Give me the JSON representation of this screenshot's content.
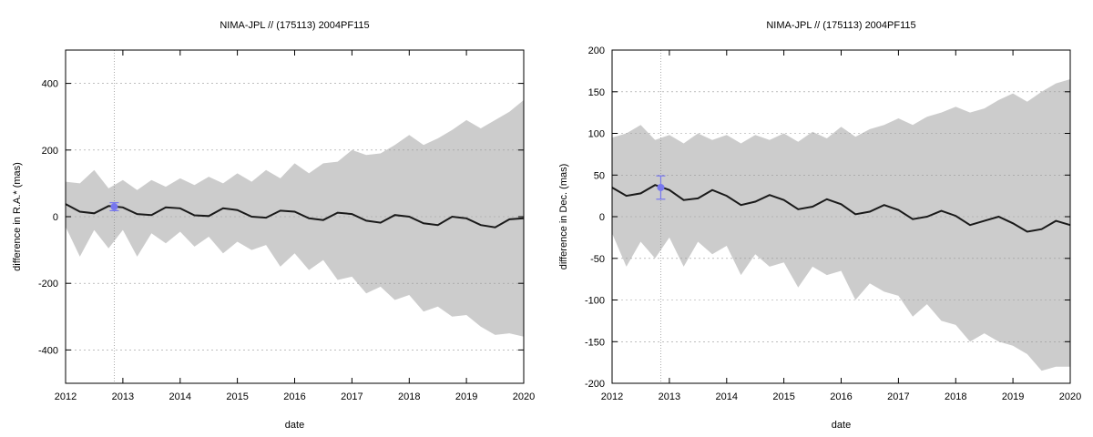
{
  "chart_data": [
    {
      "type": "line",
      "title": "NIMA-JPL // (175113) 2004PF115",
      "xlabel": "date",
      "ylabel": "difference in R.A.* (mas)",
      "xlim": [
        2012,
        2020
      ],
      "ylim": [
        -500,
        500
      ],
      "xticks": [
        2012,
        2013,
        2014,
        2015,
        2016,
        2017,
        2018,
        2019,
        2020
      ],
      "yticks": [
        -400,
        -200,
        0,
        200,
        400
      ],
      "grid": true,
      "marker_line_x": 2012.85,
      "colors": {
        "band": "#cccccc",
        "curve": "#1a1a1a",
        "observation": "#7777ee"
      },
      "band": {
        "x": [
          2012.0,
          2012.25,
          2012.5,
          2012.75,
          2013.0,
          2013.25,
          2013.5,
          2013.75,
          2014.0,
          2014.25,
          2014.5,
          2014.75,
          2015.0,
          2015.25,
          2015.5,
          2015.75,
          2016.0,
          2016.25,
          2016.5,
          2016.75,
          2017.0,
          2017.25,
          2017.5,
          2017.75,
          2018.0,
          2018.25,
          2018.5,
          2018.75,
          2019.0,
          2019.25,
          2019.5,
          2019.75,
          2020.0
        ],
        "upper": [
          105,
          100,
          140,
          85,
          110,
          80,
          110,
          90,
          115,
          95,
          120,
          100,
          130,
          105,
          140,
          115,
          160,
          130,
          160,
          165,
          200,
          185,
          190,
          215,
          245,
          215,
          235,
          260,
          290,
          265,
          290,
          315,
          350
        ],
        "lower": [
          -30,
          -120,
          -40,
          -95,
          -40,
          -120,
          -50,
          -80,
          -45,
          -90,
          -60,
          -110,
          -75,
          -100,
          -85,
          -150,
          -110,
          -160,
          -130,
          -190,
          -180,
          -230,
          -210,
          -250,
          -235,
          -285,
          -270,
          -300,
          -295,
          -330,
          -355,
          -350,
          -360
        ]
      },
      "curve": {
        "x": [
          2012.0,
          2012.25,
          2012.5,
          2012.75,
          2013.0,
          2013.25,
          2013.5,
          2013.75,
          2014.0,
          2014.25,
          2014.5,
          2014.75,
          2015.0,
          2015.25,
          2015.5,
          2015.75,
          2016.0,
          2016.25,
          2016.5,
          2016.75,
          2017.0,
          2017.25,
          2017.5,
          2017.75,
          2018.0,
          2018.25,
          2018.5,
          2018.75,
          2019.0,
          2019.25,
          2019.5,
          2019.75,
          2020.0
        ],
        "y": [
          38,
          15,
          10,
          32,
          28,
          8,
          5,
          28,
          25,
          4,
          2,
          25,
          20,
          0,
          -3,
          18,
          15,
          -5,
          -10,
          12,
          8,
          -12,
          -18,
          5,
          0,
          -20,
          -25,
          0,
          -5,
          -25,
          -32,
          -8,
          -5
        ]
      },
      "observation": {
        "x": 2012.85,
        "y": 30,
        "err": 12
      }
    },
    {
      "type": "line",
      "title": "NIMA-JPL // (175113) 2004PF115",
      "xlabel": "date",
      "ylabel": "difference in Dec. (mas)",
      "xlim": [
        2012,
        2020
      ],
      "ylim": [
        -200,
        200
      ],
      "xticks": [
        2012,
        2013,
        2014,
        2015,
        2016,
        2017,
        2018,
        2019,
        2020
      ],
      "yticks": [
        -200,
        -150,
        -100,
        -50,
        0,
        50,
        100,
        150,
        200
      ],
      "grid": true,
      "marker_line_x": 2012.85,
      "colors": {
        "band": "#cccccc",
        "curve": "#1a1a1a",
        "observation": "#7777ee"
      },
      "band": {
        "x": [
          2012.0,
          2012.25,
          2012.5,
          2012.75,
          2013.0,
          2013.25,
          2013.5,
          2013.75,
          2014.0,
          2014.25,
          2014.5,
          2014.75,
          2015.0,
          2015.25,
          2015.5,
          2015.75,
          2016.0,
          2016.25,
          2016.5,
          2016.75,
          2017.0,
          2017.25,
          2017.5,
          2017.75,
          2018.0,
          2018.25,
          2018.5,
          2018.75,
          2019.0,
          2019.25,
          2019.5,
          2019.75,
          2020.0
        ],
        "upper": [
          95,
          100,
          110,
          92,
          98,
          88,
          100,
          92,
          98,
          88,
          98,
          92,
          100,
          90,
          102,
          94,
          108,
          96,
          105,
          110,
          118,
          110,
          120,
          125,
          132,
          125,
          130,
          140,
          148,
          138,
          150,
          160,
          165
        ],
        "lower": [
          -20,
          -60,
          -30,
          -50,
          -25,
          -60,
          -30,
          -45,
          -35,
          -70,
          -45,
          -60,
          -55,
          -85,
          -60,
          -70,
          -65,
          -100,
          -80,
          -90,
          -95,
          -120,
          -105,
          -125,
          -130,
          -150,
          -140,
          -150,
          -155,
          -165,
          -185,
          -180,
          -180
        ]
      },
      "curve": {
        "x": [
          2012.0,
          2012.25,
          2012.5,
          2012.75,
          2013.0,
          2013.25,
          2013.5,
          2013.75,
          2014.0,
          2014.25,
          2014.5,
          2014.75,
          2015.0,
          2015.25,
          2015.5,
          2015.75,
          2016.0,
          2016.25,
          2016.5,
          2016.75,
          2017.0,
          2017.25,
          2017.5,
          2017.75,
          2018.0,
          2018.25,
          2018.5,
          2018.75,
          2019.0,
          2019.25,
          2019.5,
          2019.75,
          2020.0
        ],
        "y": [
          35,
          25,
          28,
          38,
          32,
          20,
          22,
          32,
          25,
          14,
          18,
          26,
          20,
          9,
          12,
          21,
          15,
          3,
          6,
          14,
          8,
          -3,
          0,
          7,
          1,
          -10,
          -5,
          0,
          -8,
          -18,
          -15,
          -5,
          -10
        ]
      },
      "observation": {
        "x": 2012.85,
        "y": 35,
        "err": 14
      }
    }
  ]
}
